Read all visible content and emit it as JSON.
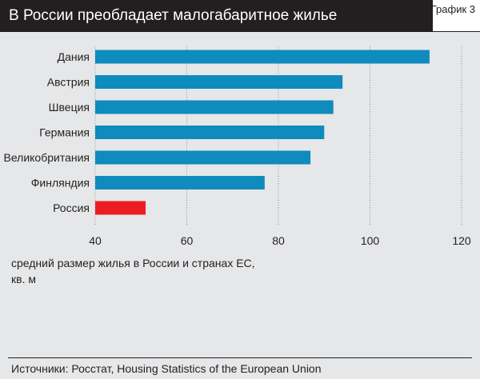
{
  "header": {
    "title": "В России преобладает малогабаритное жилье",
    "chart_label": "График 3"
  },
  "source": "Источники: Росстат, Housing Statistics of the European Union",
  "colors": {
    "bar_default": "#0f8bbd",
    "bar_highlight": "#ed1c24",
    "grid": "#8a9097",
    "header_bg": "#231f20"
  },
  "chart_data": {
    "type": "bar",
    "orientation": "horizontal",
    "title": "В России преобладает малогабаритное жилье",
    "categories": [
      "Дания",
      "Австрия",
      "Швеция",
      "Германия",
      "Великобритания",
      "Финляндия",
      "Россия"
    ],
    "values": [
      113,
      94,
      92,
      90,
      87,
      77,
      51
    ],
    "highlight": "Россия",
    "xlim": [
      40,
      120
    ],
    "xticks": [
      40,
      60,
      80,
      100,
      120
    ],
    "xlabel_lines": [
      "средний размер жилья в России и странах ЕС,",
      "кв. м"
    ],
    "grid": "vertical-dotted"
  }
}
